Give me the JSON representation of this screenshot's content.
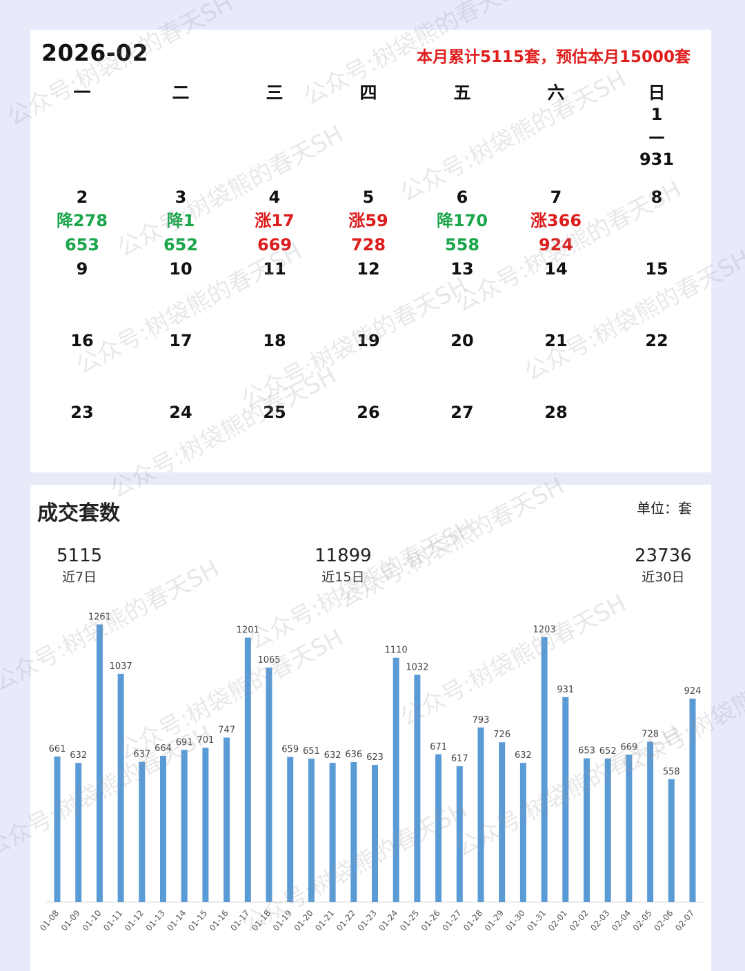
{
  "calendar": {
    "title": "2026-02",
    "summary": "本月累计5115套，预估本月15000套",
    "weekdays": [
      "一",
      "二",
      "三",
      "四",
      "五",
      "六",
      "日"
    ],
    "days": [
      {
        "d": "1",
        "dash": "—",
        "val": "931",
        "col": 6,
        "row": 0
      },
      {
        "d": "2",
        "chg": "降278",
        "dir": "down",
        "val": "653",
        "col": 0,
        "row": 1
      },
      {
        "d": "3",
        "chg": "降1",
        "dir": "down",
        "val": "652",
        "col": 1,
        "row": 1
      },
      {
        "d": "4",
        "chg": "涨17",
        "dir": "up",
        "val": "669",
        "col": 2,
        "row": 1
      },
      {
        "d": "5",
        "chg": "涨59",
        "dir": "up",
        "val": "728",
        "col": 3,
        "row": 1
      },
      {
        "d": "6",
        "chg": "降170",
        "dir": "down",
        "val": "558",
        "col": 4,
        "row": 1
      },
      {
        "d": "7",
        "chg": "涨366",
        "dir": "up",
        "val": "924",
        "col": 5,
        "row": 1
      },
      {
        "d": "8",
        "col": 6,
        "row": 1
      },
      {
        "d": "9",
        "col": 0,
        "row": 2
      },
      {
        "d": "10",
        "col": 1,
        "row": 2
      },
      {
        "d": "11",
        "col": 2,
        "row": 2
      },
      {
        "d": "12",
        "col": 3,
        "row": 2
      },
      {
        "d": "13",
        "col": 4,
        "row": 2
      },
      {
        "d": "14",
        "col": 5,
        "row": 2
      },
      {
        "d": "15",
        "col": 6,
        "row": 2
      },
      {
        "d": "16",
        "col": 0,
        "row": 3
      },
      {
        "d": "17",
        "col": 1,
        "row": 3
      },
      {
        "d": "18",
        "col": 2,
        "row": 3
      },
      {
        "d": "19",
        "col": 3,
        "row": 3
      },
      {
        "d": "20",
        "col": 4,
        "row": 3
      },
      {
        "d": "21",
        "col": 5,
        "row": 3
      },
      {
        "d": "22",
        "col": 6,
        "row": 3
      },
      {
        "d": "23",
        "col": 0,
        "row": 4
      },
      {
        "d": "24",
        "col": 1,
        "row": 4
      },
      {
        "d": "25",
        "col": 2,
        "row": 4
      },
      {
        "d": "26",
        "col": 3,
        "row": 4
      },
      {
        "d": "27",
        "col": 4,
        "row": 4
      },
      {
        "d": "28",
        "col": 5,
        "row": 4
      }
    ]
  },
  "stats": {
    "title": "成交套数",
    "unit": "单位：套",
    "s7": {
      "value": "5115",
      "label": "近7日"
    },
    "s15": {
      "value": "11899",
      "label": "近15日"
    },
    "s30": {
      "value": "23736",
      "label": "近30日"
    }
  },
  "watermark": "公众号:树袋熊的春天SH",
  "colors": {
    "bar": "#5b9bd5",
    "up": "#dd1c1c",
    "down": "#1aa64a"
  },
  "chart_data": {
    "type": "bar",
    "title": "成交套数",
    "ylabel": "单位：套",
    "xlabel": "",
    "categories": [
      "01-08",
      "01-09",
      "01-10",
      "01-11",
      "01-12",
      "01-13",
      "01-14",
      "01-15",
      "01-16",
      "01-17",
      "01-18",
      "01-19",
      "01-20",
      "01-21",
      "01-22",
      "01-23",
      "01-24",
      "01-25",
      "01-26",
      "01-27",
      "01-28",
      "01-29",
      "01-30",
      "01-31",
      "02-01",
      "02-02",
      "02-03",
      "02-04",
      "02-05",
      "02-06",
      "02-07"
    ],
    "values": [
      661,
      632,
      1261,
      1037,
      637,
      664,
      691,
      701,
      747,
      1201,
      1065,
      659,
      651,
      632,
      636,
      623,
      1110,
      1032,
      671,
      617,
      793,
      726,
      632,
      1203,
      931,
      653,
      652,
      669,
      728,
      558,
      924
    ],
    "ylim": [
      0,
      1300
    ],
    "data_labels": true,
    "grid": false,
    "legend": "none"
  }
}
